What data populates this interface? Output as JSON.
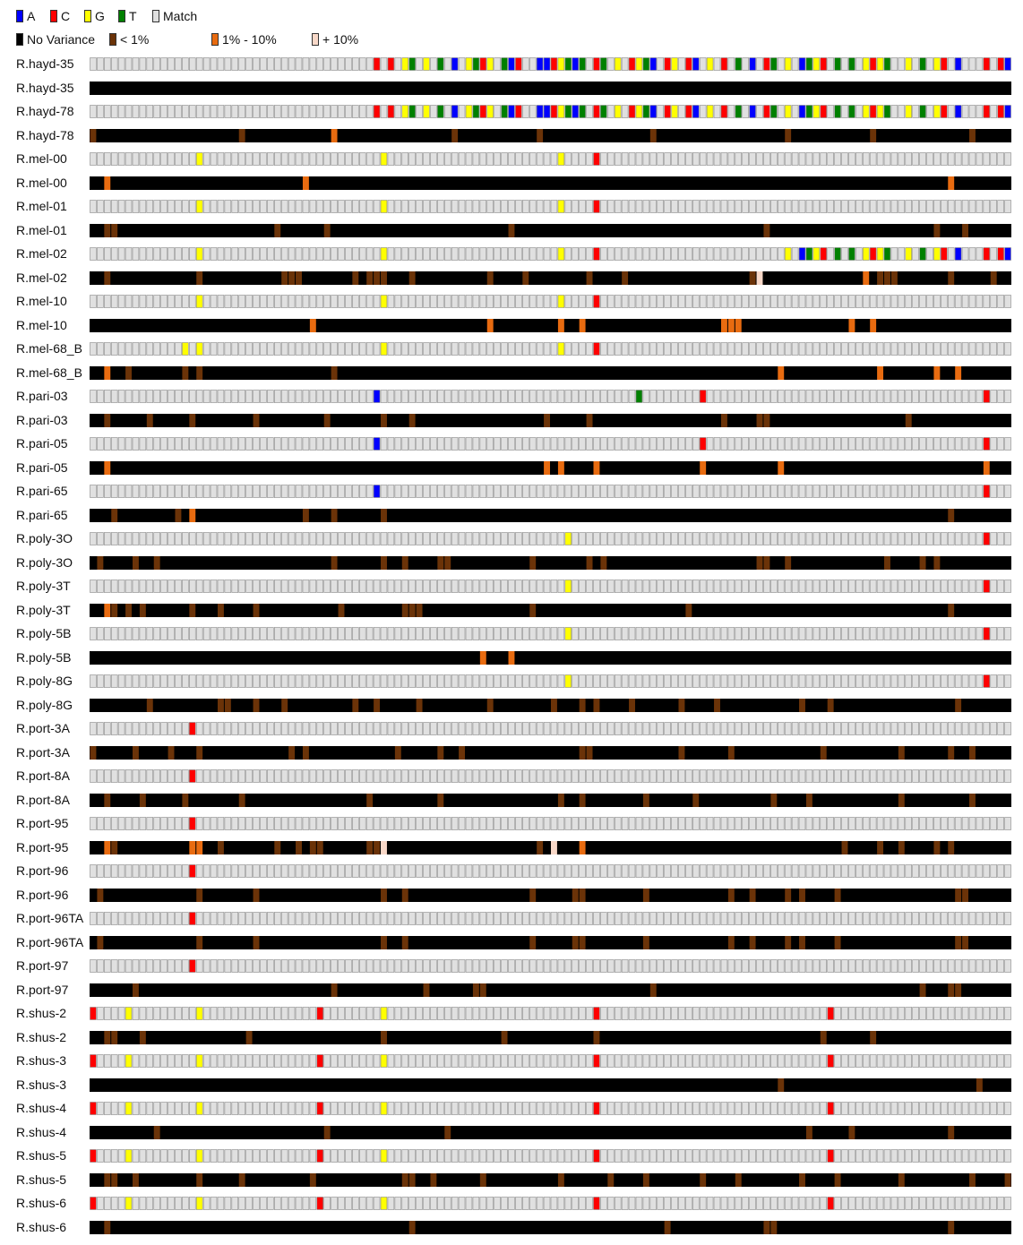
{
  "legend_bases": [
    {
      "label": "A",
      "color": "#0000ff"
    },
    {
      "label": "C",
      "color": "#ff0000"
    },
    {
      "label": "G",
      "color": "#ffff00"
    },
    {
      "label": "T",
      "color": "#008000"
    },
    {
      "label": "Match",
      "color": "#e0e0e0"
    }
  ],
  "legend_variance": [
    {
      "label": "No Variance",
      "color": "#000000"
    },
    {
      "label": "< 1%",
      "color": "#6b3308"
    },
    {
      "label": "1% - 10%",
      "color": "#e86b10"
    },
    {
      "label": "+ 10%",
      "color": "#f8d8c8"
    }
  ],
  "n_positions": 130,
  "colors": {
    "A": "#0000ff",
    "C": "#ff0000",
    "G": "#ffff00",
    "T": "#008000",
    "match": "#e0e0e0",
    "match_border": "#888888",
    "none": "#000000",
    "low": "#6b3308",
    "mid": "#e86b10",
    "high": "#f8d8c8"
  },
  "tracks": [
    {
      "label": "R.hayd-35",
      "type": "seq",
      "pattern": "hayd"
    },
    {
      "label": "R.hayd-35",
      "type": "var",
      "cells": {}
    },
    {
      "label": "R.hayd-78",
      "type": "seq",
      "pattern": "hayd"
    },
    {
      "label": "R.hayd-78",
      "type": "var",
      "cells": {
        "0": "low",
        "21": "low",
        "34": "mid",
        "51": "low",
        "63": "low",
        "79": "low",
        "98": "low",
        "110": "low",
        "124": "low"
      }
    },
    {
      "label": "R.mel-00",
      "type": "seq",
      "cells": {
        "15": "G",
        "41": "G",
        "66": "G",
        "71": "C"
      }
    },
    {
      "label": "R.mel-00",
      "type": "var",
      "cells": {
        "2": "mid",
        "30": "mid",
        "121": "mid"
      }
    },
    {
      "label": "R.mel-01",
      "type": "seq",
      "cells": {
        "15": "G",
        "41": "G",
        "66": "G",
        "71": "C"
      }
    },
    {
      "label": "R.mel-01",
      "type": "var",
      "cells": {
        "2": "low",
        "3": "low",
        "26": "low",
        "33": "low",
        "59": "low",
        "95": "low",
        "119": "low",
        "123": "low"
      }
    },
    {
      "label": "R.mel-02",
      "type": "seq",
      "cells": {
        "15": "G",
        "41": "G",
        "66": "G",
        "71": "C"
      },
      "tail": "hayd",
      "tail_start": 97
    },
    {
      "label": "R.mel-02",
      "type": "var",
      "cells": {
        "2": "low",
        "15": "low",
        "27": "low",
        "28": "low",
        "29": "low",
        "37": "low",
        "39": "low",
        "40": "low",
        "41": "low",
        "45": "low",
        "56": "low",
        "61": "low",
        "70": "low",
        "75": "low",
        "93": "low",
        "94": "high",
        "109": "mid",
        "111": "low",
        "112": "low",
        "113": "low",
        "121": "low",
        "127": "low"
      }
    },
    {
      "label": "R.mel-10",
      "type": "seq",
      "cells": {
        "15": "G",
        "41": "G",
        "66": "G",
        "71": "C"
      }
    },
    {
      "label": "R.mel-10",
      "type": "var",
      "cells": {
        "31": "mid",
        "56": "mid",
        "66": "mid",
        "69": "mid",
        "89": "mid",
        "90": "mid",
        "91": "mid",
        "107": "mid",
        "110": "mid"
      }
    },
    {
      "label": "R.mel-68_B",
      "type": "seq",
      "cells": {
        "13": "G",
        "15": "G",
        "41": "G",
        "66": "G",
        "71": "C"
      }
    },
    {
      "label": "R.mel-68_B",
      "type": "var",
      "cells": {
        "2": "mid",
        "5": "low",
        "13": "low",
        "15": "low",
        "34": "low",
        "97": "mid",
        "111": "mid",
        "119": "mid",
        "122": "mid"
      }
    },
    {
      "label": "R.pari-03",
      "type": "seq",
      "cells": {
        "40": "A",
        "77": "T",
        "86": "C",
        "126": "C"
      }
    },
    {
      "label": "R.pari-03",
      "type": "var",
      "cells": {
        "2": "low",
        "8": "low",
        "14": "low",
        "23": "low",
        "33": "low",
        "41": "low",
        "45": "low",
        "64": "low",
        "70": "low",
        "89": "low",
        "94": "low",
        "95": "low",
        "115": "low"
      }
    },
    {
      "label": "R.pari-05",
      "type": "seq",
      "cells": {
        "40": "A",
        "86": "C",
        "126": "C"
      }
    },
    {
      "label": "R.pari-05",
      "type": "var",
      "cells": {
        "2": "mid",
        "64": "mid",
        "66": "mid",
        "71": "mid",
        "86": "mid",
        "97": "mid",
        "126": "mid"
      }
    },
    {
      "label": "R.pari-65",
      "type": "seq",
      "cells": {
        "40": "A",
        "126": "C"
      }
    },
    {
      "label": "R.pari-65",
      "type": "var",
      "cells": {
        "3": "low",
        "12": "low",
        "14": "mid",
        "30": "low",
        "34": "low",
        "41": "low",
        "121": "low"
      }
    },
    {
      "label": "R.poly-3O",
      "type": "seq",
      "cells": {
        "67": "G",
        "126": "C"
      }
    },
    {
      "label": "R.poly-3O",
      "type": "var",
      "cells": {
        "1": "low",
        "6": "low",
        "9": "low",
        "34": "low",
        "41": "low",
        "44": "low",
        "49": "low",
        "50": "low",
        "62": "low",
        "70": "low",
        "72": "low",
        "94": "low",
        "95": "low",
        "98": "low",
        "112": "low",
        "117": "low",
        "119": "low"
      }
    },
    {
      "label": "R.poly-3T",
      "type": "seq",
      "cells": {
        "67": "G",
        "126": "C"
      }
    },
    {
      "label": "R.poly-3T",
      "type": "var",
      "cells": {
        "2": "mid",
        "3": "low",
        "5": "low",
        "7": "low",
        "14": "low",
        "18": "low",
        "23": "low",
        "35": "low",
        "44": "low",
        "45": "low",
        "46": "low",
        "62": "low",
        "84": "low",
        "121": "low"
      }
    },
    {
      "label": "R.poly-5B",
      "type": "seq",
      "cells": {
        "67": "G",
        "126": "C"
      }
    },
    {
      "label": "R.poly-5B",
      "type": "var",
      "cells": {
        "55": "mid",
        "59": "mid"
      }
    },
    {
      "label": "R.poly-8G",
      "type": "seq",
      "cells": {
        "67": "G",
        "126": "C"
      }
    },
    {
      "label": "R.poly-8G",
      "type": "var",
      "cells": {
        "8": "low",
        "18": "low",
        "19": "low",
        "23": "low",
        "27": "low",
        "37": "low",
        "40": "low",
        "46": "low",
        "56": "low",
        "65": "low",
        "69": "low",
        "71": "low",
        "76": "low",
        "83": "low",
        "88": "low",
        "100": "low",
        "104": "low",
        "122": "low"
      }
    },
    {
      "label": "R.port-3A",
      "type": "seq",
      "cells": {
        "14": "C"
      }
    },
    {
      "label": "R.port-3A",
      "type": "var",
      "cells": {
        "0": "low",
        "6": "low",
        "11": "low",
        "15": "low",
        "28": "low",
        "30": "low",
        "43": "low",
        "49": "low",
        "52": "low",
        "69": "low",
        "70": "low",
        "83": "low",
        "90": "low",
        "103": "low",
        "114": "low",
        "121": "low",
        "124": "low"
      }
    },
    {
      "label": "R.port-8A",
      "type": "seq",
      "cells": {
        "14": "C"
      }
    },
    {
      "label": "R.port-8A",
      "type": "var",
      "cells": {
        "2": "low",
        "7": "low",
        "13": "low",
        "21": "low",
        "39": "low",
        "49": "low",
        "66": "low",
        "69": "low",
        "78": "low",
        "85": "low",
        "96": "low",
        "101": "low",
        "114": "low",
        "124": "low"
      }
    },
    {
      "label": "R.port-95",
      "type": "seq",
      "cells": {
        "14": "C"
      }
    },
    {
      "label": "R.port-95",
      "type": "var",
      "cells": {
        "2": "mid",
        "3": "low",
        "14": "mid",
        "15": "mid",
        "18": "low",
        "26": "low",
        "29": "low",
        "31": "low",
        "32": "low",
        "39": "low",
        "40": "low",
        "41": "high",
        "63": "low",
        "65": "high",
        "69": "mid",
        "106": "low",
        "111": "low",
        "114": "low",
        "119": "low",
        "121": "low"
      }
    },
    {
      "label": "R.port-96",
      "type": "seq",
      "cells": {
        "14": "C"
      }
    },
    {
      "label": "R.port-96",
      "type": "var",
      "cells": {
        "1": "low",
        "15": "low",
        "23": "low",
        "41": "low",
        "44": "low",
        "62": "low",
        "68": "low",
        "69": "low",
        "78": "low",
        "90": "low",
        "93": "low",
        "98": "low",
        "100": "low",
        "105": "low",
        "122": "low",
        "123": "low"
      }
    },
    {
      "label": "R.port-96TA",
      "type": "seq",
      "cells": {
        "14": "C"
      }
    },
    {
      "label": "R.port-96TA",
      "type": "var",
      "cells": {
        "1": "low",
        "15": "low",
        "23": "low",
        "41": "low",
        "44": "low",
        "62": "low",
        "68": "low",
        "69": "low",
        "78": "low",
        "90": "low",
        "93": "low",
        "98": "low",
        "100": "low",
        "105": "low",
        "122": "low",
        "123": "low"
      }
    },
    {
      "label": "R.port-97",
      "type": "seq",
      "cells": {
        "14": "C"
      }
    },
    {
      "label": "R.port-97",
      "type": "var",
      "cells": {
        "6": "low",
        "34": "low",
        "47": "low",
        "54": "low",
        "55": "low",
        "79": "low",
        "117": "low",
        "121": "low",
        "122": "low"
      }
    },
    {
      "label": "R.shus-2",
      "type": "seq",
      "cells": {
        "0": "C",
        "5": "G",
        "15": "G",
        "32": "C",
        "41": "G",
        "71": "C",
        "104": "C"
      }
    },
    {
      "label": "R.shus-2",
      "type": "var",
      "cells": {
        "2": "low",
        "3": "low",
        "7": "low",
        "22": "low",
        "41": "low",
        "58": "low",
        "71": "low",
        "103": "low",
        "110": "low"
      }
    },
    {
      "label": "R.shus-3",
      "type": "seq",
      "cells": {
        "0": "C",
        "5": "G",
        "15": "G",
        "32": "C",
        "41": "G",
        "71": "C",
        "104": "C"
      }
    },
    {
      "label": "R.shus-3",
      "type": "var",
      "cells": {
        "97": "low",
        "125": "low"
      }
    },
    {
      "label": "R.shus-4",
      "type": "seq",
      "cells": {
        "0": "C",
        "5": "G",
        "15": "G",
        "32": "C",
        "41": "G",
        "71": "C",
        "104": "C"
      }
    },
    {
      "label": "R.shus-4",
      "type": "var",
      "cells": {
        "9": "low",
        "33": "low",
        "50": "low",
        "101": "low",
        "107": "low",
        "121": "low"
      }
    },
    {
      "label": "R.shus-5",
      "type": "seq",
      "cells": {
        "0": "C",
        "5": "G",
        "15": "G",
        "32": "C",
        "41": "G",
        "71": "C",
        "104": "C"
      }
    },
    {
      "label": "R.shus-5",
      "type": "var",
      "cells": {
        "2": "low",
        "3": "low",
        "6": "low",
        "15": "low",
        "21": "low",
        "31": "low",
        "44": "low",
        "45": "low",
        "48": "low",
        "55": "low",
        "66": "low",
        "73": "low",
        "78": "low",
        "86": "low",
        "91": "low",
        "100": "low",
        "105": "low",
        "114": "low",
        "124": "low",
        "129": "low"
      }
    },
    {
      "label": "R.shus-6",
      "type": "seq",
      "cells": {
        "0": "C",
        "5": "G",
        "15": "G",
        "32": "C",
        "41": "G",
        "71": "C",
        "104": "C"
      }
    },
    {
      "label": "R.shus-6",
      "type": "var",
      "cells": {
        "2": "low",
        "45": "low",
        "81": "low",
        "95": "low",
        "96": "low",
        "121": "low"
      }
    }
  ]
}
